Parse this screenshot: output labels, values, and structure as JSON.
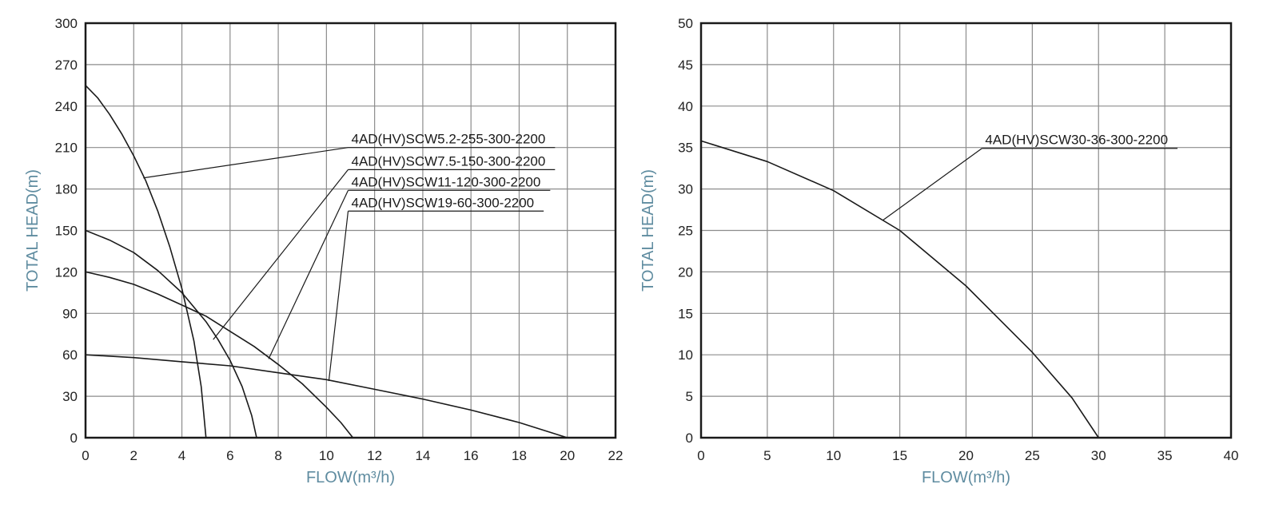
{
  "colors": {
    "axis_title": "#5f8ca0",
    "curve": "#1a1a1a",
    "grid": "#8c8c8c",
    "frame": "#1a1a1a",
    "tick_text": "#222222"
  },
  "chart_data": [
    {
      "type": "line",
      "xlabel": "FLOW(m³/h)",
      "ylabel": "TOTAL HEAD(m)",
      "xlim": [
        0,
        22
      ],
      "ylim": [
        0,
        300
      ],
      "x_ticks": [
        0,
        2,
        4,
        6,
        8,
        10,
        12,
        14,
        16,
        18,
        20,
        22
      ],
      "y_ticks": [
        0,
        30,
        60,
        90,
        120,
        150,
        180,
        210,
        240,
        270,
        300
      ],
      "grid": true,
      "series": [
        {
          "name": "4AD(HV)SCW5.2-255-300-2200",
          "x": [
            0,
            0.5,
            1,
            1.5,
            2,
            2.5,
            3,
            3.5,
            4,
            4.5,
            4.8,
            5.0
          ],
          "y": [
            255,
            246,
            234,
            220,
            204,
            186,
            164,
            138,
            108,
            70,
            37,
            0
          ],
          "label_xy": [
            10.9,
            210
          ],
          "leader_point": [
            2.4,
            188
          ]
        },
        {
          "name": "4AD(HV)SCW7.5-150-300-2200",
          "x": [
            0,
            1,
            2,
            3,
            4,
            5,
            5.5,
            6,
            6.5,
            6.9,
            7.1
          ],
          "y": [
            150,
            143,
            134,
            121,
            105,
            84,
            71,
            56,
            37,
            16,
            0
          ],
          "label_xy": [
            10.9,
            194
          ],
          "leader_point": [
            5.3,
            71
          ]
        },
        {
          "name": "4AD(HV)SCW11-120-300-2200",
          "x": [
            0,
            1,
            2,
            3,
            4,
            5,
            6,
            7,
            8,
            9,
            10,
            10.6,
            11.1
          ],
          "y": [
            120,
            116,
            111,
            104,
            96,
            88,
            77,
            66,
            53,
            39,
            22,
            11,
            0
          ],
          "label_xy": [
            10.9,
            179
          ],
          "leader_point": [
            7.6,
            57
          ]
        },
        {
          "name": "4AD(HV)SCW19-60-300-2200",
          "x": [
            0,
            2,
            4,
            6,
            8,
            10,
            12,
            14,
            16,
            18,
            20
          ],
          "y": [
            60,
            58,
            55,
            52,
            47,
            42,
            35,
            28,
            20,
            11,
            0
          ],
          "label_xy": [
            10.9,
            164
          ],
          "leader_point": [
            10.1,
            41
          ]
        }
      ]
    },
    {
      "type": "line",
      "xlabel": "FLOW(m³/h)",
      "ylabel": "TOTAL HEAD(m)",
      "xlim": [
        0,
        40
      ],
      "ylim": [
        0,
        50
      ],
      "x_ticks": [
        0,
        5,
        10,
        15,
        20,
        25,
        30,
        35,
        40
      ],
      "y_ticks": [
        0,
        5,
        10,
        15,
        20,
        25,
        30,
        35,
        40,
        45,
        50
      ],
      "grid": true,
      "series": [
        {
          "name": "4AD(HV)SCW30-36-300-2200",
          "x": [
            0,
            5,
            10,
            15,
            20,
            25,
            28,
            30
          ],
          "y": [
            35.8,
            33.3,
            29.8,
            25.0,
            18.3,
            10.3,
            4.8,
            0
          ],
          "label_xy": [
            21.2,
            34.9
          ],
          "leader_point": [
            13.7,
            26.2
          ]
        }
      ]
    }
  ]
}
